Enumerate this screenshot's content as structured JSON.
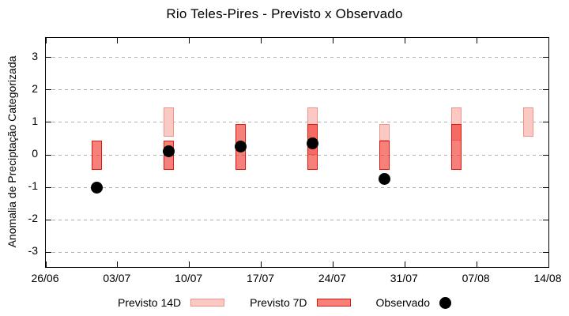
{
  "chart_data": {
    "type": "bar",
    "subtype": "range-bars-with-scatter-overlay",
    "title": "Rio Teles-Pires - Previsto x Observado",
    "ylabel": "Anomalia de Preciptação Categorizada",
    "xlabel": "",
    "x_tick_labels": [
      "26/06",
      "03/07",
      "10/07",
      "17/07",
      "24/07",
      "31/07",
      "07/08",
      "14/08"
    ],
    "x_tick_interval_days": 7,
    "x_axis_span_days": 49,
    "y_tick_labels": [
      "3",
      "2",
      "1",
      "0",
      "-1",
      "-2",
      "-3"
    ],
    "y_tick_values": [
      3,
      2,
      1,
      0,
      -1,
      -2,
      -3
    ],
    "ylim": [
      -3.45,
      3.6
    ],
    "grid": true,
    "legend_position": "bottom-center",
    "legend_labels": [
      "Previsto 14D",
      "Previsto 7D",
      "Observado"
    ],
    "x_days_from_start": [
      5,
      12,
      19,
      26,
      33,
      40,
      47
    ],
    "series": [
      {
        "name": "Previsto 14D",
        "type": "range_bar",
        "ranges": [
          null,
          [
            0.55,
            1.45
          ],
          null,
          [
            0.0,
            1.45
          ],
          [
            0.45,
            0.95
          ],
          [
            0.45,
            1.45
          ],
          [
            0.55,
            1.45
          ]
        ]
      },
      {
        "name": "Previsto 7D",
        "type": "range_bar",
        "ranges": [
          [
            -0.45,
            0.45
          ],
          [
            -0.45,
            0.45
          ],
          [
            -0.45,
            0.95
          ],
          [
            -0.45,
            0.95
          ],
          [
            -0.45,
            0.45
          ],
          [
            -0.45,
            0.95
          ],
          null
        ]
      },
      {
        "name": "Observado",
        "type": "scatter",
        "values": [
          -1.0,
          0.1,
          0.25,
          0.35,
          -0.75,
          null,
          null
        ]
      }
    ],
    "colors": {
      "previsto_14d_fill": "#fbc9c3",
      "previsto_14d_border": "#f0938a",
      "previsto_7d_fill": "#f6817b",
      "previsto_7d_border": "#e1150f",
      "observado": "#000000",
      "gridline": "#b0b0b0",
      "axis": "#000000"
    }
  }
}
